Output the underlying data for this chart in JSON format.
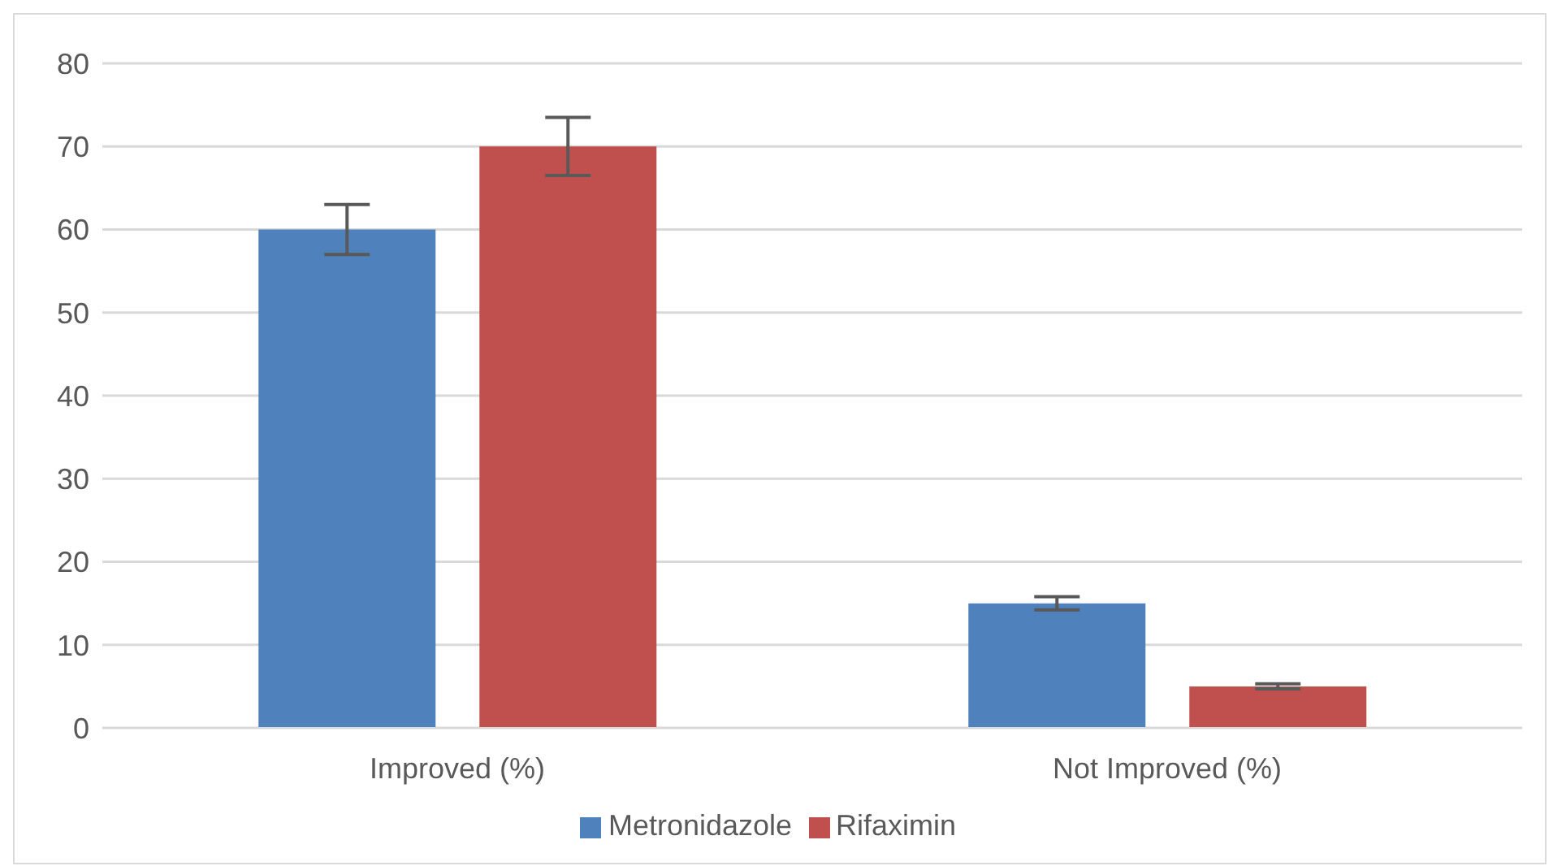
{
  "chart_data": {
    "type": "bar",
    "categories": [
      "Improved (%)",
      "Not Improved (%)"
    ],
    "series": [
      {
        "name": "Metronidazole",
        "color": "#4f81bd",
        "values": [
          60,
          15
        ],
        "errors": [
          3,
          0.8
        ]
      },
      {
        "name": "Rifaximin",
        "color": "#c0504d",
        "values": [
          70,
          5
        ],
        "errors": [
          3.5,
          0.3
        ]
      }
    ],
    "ylim": [
      0,
      80
    ],
    "yticks": [
      0,
      10,
      20,
      30,
      40,
      50,
      60,
      70,
      80
    ],
    "grid": "y",
    "legend": "bottom"
  }
}
